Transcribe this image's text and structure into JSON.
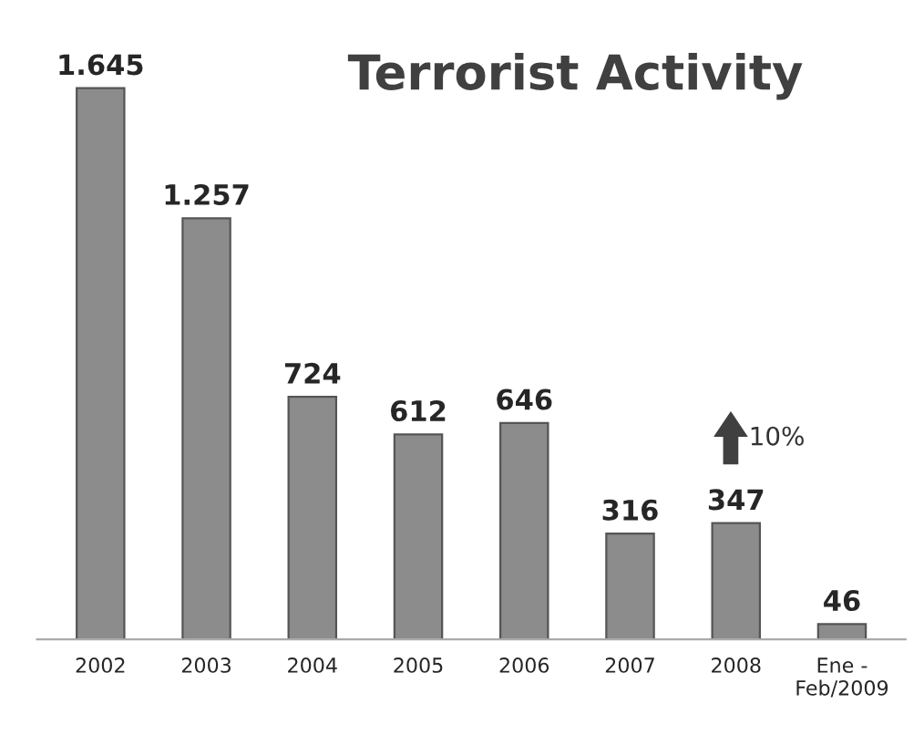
{
  "chart_data": {
    "type": "bar",
    "title": "Terrorist Activity",
    "categories": [
      "2002",
      "2003",
      "2004",
      "2005",
      "2006",
      "2007",
      "2008",
      "Ene -\nFeb/2009"
    ],
    "values": [
      1645,
      1257,
      724,
      612,
      646,
      316,
      347,
      46
    ],
    "value_labels": [
      "1.645",
      "1.257",
      "724",
      "612",
      "646",
      "316",
      "347",
      "46"
    ],
    "color": "#8c8c8c",
    "annotations": [
      "10%"
    ],
    "grid": false,
    "legend": false
  }
}
